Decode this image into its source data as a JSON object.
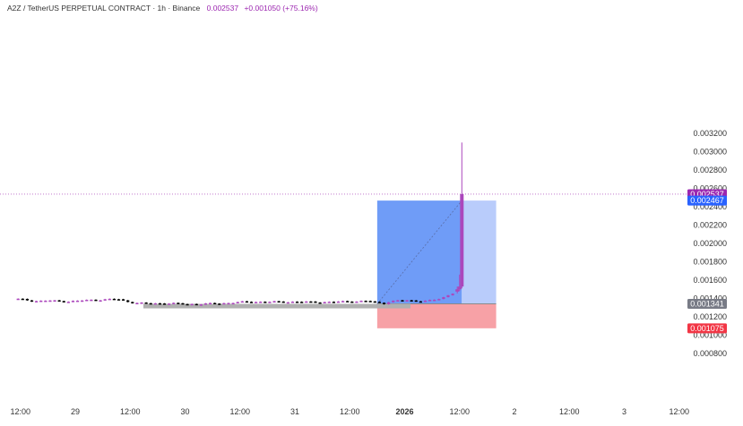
{
  "header": {
    "symbol": "A2Z",
    "pair": "A2Z / TetherUS PERPETUAL CONTRACT · 1h · Binance",
    "last_price": "0.002537",
    "change": "+0.001050 (+75.16%)"
  },
  "colors": {
    "up": "#ab47bc",
    "down": "#000000",
    "price_line": "#9c27b0",
    "profit_zone": "#6f9cf7",
    "profit_zone_light": "#b9ccfb",
    "loss_zone": "#f7a1a6",
    "target_badge": "#2962ff",
    "stop_badge": "#f23645",
    "entry_badge": "#787b86",
    "entry_bar": "#b0b0b0"
  },
  "chart_data": {
    "type": "candlestick",
    "title": "",
    "xlabel": "",
    "ylabel": "",
    "ylim": [
      0.00066,
      0.00326
    ],
    "x_ticks": [
      {
        "label": "12:00",
        "x": -12
      },
      {
        "label": "29",
        "x": 0
      },
      {
        "label": "12:00",
        "x": 12
      },
      {
        "label": "30",
        "x": 24
      },
      {
        "label": "12:00",
        "x": 36
      },
      {
        "label": "31",
        "x": 48
      },
      {
        "label": "12:00",
        "x": 60
      },
      {
        "label": "2026",
        "x": 72
      },
      {
        "label": "12:00",
        "x": 84
      },
      {
        "label": "2",
        "x": 96
      },
      {
        "label": "12:00",
        "x": 108
      },
      {
        "label": "3",
        "x": 120
      },
      {
        "label": "12:00",
        "x": 132
      }
    ],
    "y_ticks": [
      "0.003200",
      "0.003000",
      "0.002800",
      "0.002600",
      "0.002400",
      "0.002200",
      "0.002000",
      "0.001800",
      "0.001600",
      "0.001400",
      "0.001200",
      "0.001000",
      "0.000800"
    ],
    "price_badges": [
      {
        "label": "0.002537",
        "value": 0.002537,
        "role": "last"
      },
      {
        "label": "0.002467",
        "value": 0.002467,
        "role": "target"
      },
      {
        "label": "0.001341",
        "value": 0.001341,
        "role": "entry"
      },
      {
        "label": "0.001075",
        "value": 0.001075,
        "role": "stop"
      }
    ],
    "position": {
      "entry": 0.001341,
      "target": 0.002467,
      "stop": 0.001075,
      "x_start": 66,
      "x_end": 92,
      "filled_end": 84.5
    },
    "base_path": [
      [
        -13.5,
        0.001395
      ],
      [
        -12,
        0.001392
      ],
      [
        -10,
        0.001378
      ],
      [
        -8,
        0.001372
      ],
      [
        -6,
        0.001378
      ],
      [
        -4,
        0.001372
      ],
      [
        -2,
        0.001368
      ],
      [
        0,
        0.001372
      ],
      [
        2,
        0.00138
      ],
      [
        4,
        0.001385
      ],
      [
        6,
        0.001388
      ],
      [
        8,
        0.001392
      ],
      [
        9.5,
        0.00139
      ],
      [
        11,
        0.00137
      ],
      [
        13,
        0.001352
      ],
      [
        16,
        0.001345
      ],
      [
        20,
        0.001348
      ],
      [
        24,
        0.00134
      ],
      [
        28,
        0.00134
      ],
      [
        32,
        0.001348
      ],
      [
        36,
        0.00136
      ],
      [
        40,
        0.001365
      ],
      [
        44,
        0.001362
      ],
      [
        48,
        0.001365
      ],
      [
        52,
        0.00136
      ],
      [
        56,
        0.001362
      ],
      [
        60,
        0.001368
      ],
      [
        64,
        0.001372
      ],
      [
        66,
        0.001355
      ],
      [
        67.5,
        0.001345
      ],
      [
        68.5,
        0.001365
      ],
      [
        70,
        0.001375
      ],
      [
        72,
        0.00138
      ],
      [
        74,
        0.001375
      ],
      [
        76,
        0.001372
      ],
      [
        78,
        0.00138
      ],
      [
        80,
        0.0014
      ],
      [
        81,
        0.001425
      ],
      [
        82,
        0.00145
      ],
      [
        83,
        0.00147
      ]
    ],
    "final_candles": [
      {
        "x": 83.5,
        "open": 0.001475,
        "high": 0.00153,
        "low": 0.001455,
        "close": 0.0015
      },
      {
        "x": 84.0,
        "open": 0.0015,
        "high": 0.00166,
        "low": 0.00148,
        "close": 0.00153
      },
      {
        "x": 84.5,
        "open": 0.00153,
        "high": 0.0031,
        "low": 0.00151,
        "close": 0.002537
      }
    ]
  }
}
